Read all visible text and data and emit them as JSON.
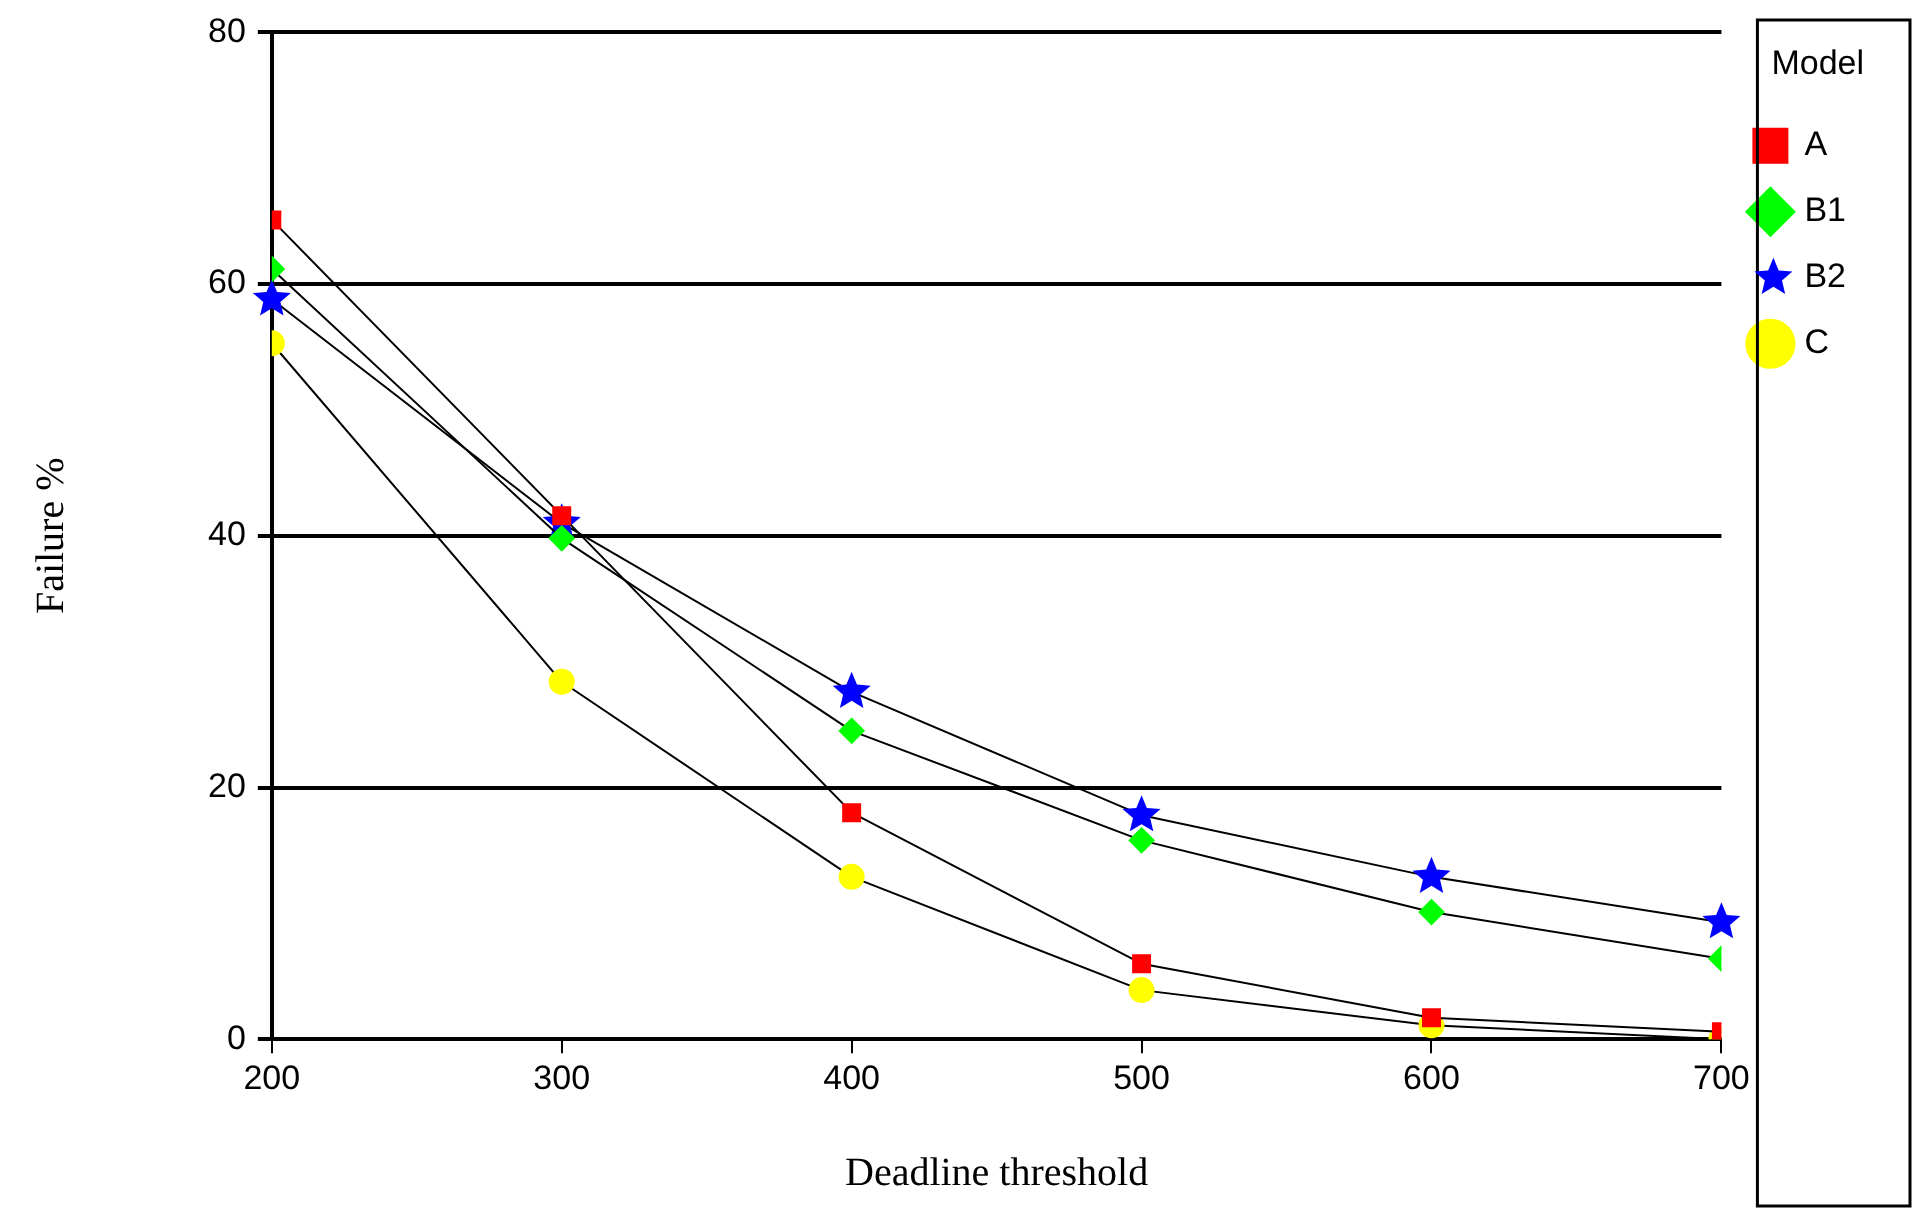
{
  "chart_data": {
    "type": "line",
    "xlabel": "Deadline threshold",
    "ylabel": "Failure %",
    "legend_title": "Model",
    "legend": "top right",
    "grid": "y",
    "x": [
      200,
      300,
      400,
      500,
      600,
      700
    ],
    "xlim": [
      200,
      700
    ],
    "xticks": [
      200,
      300,
      400,
      500,
      600,
      700
    ],
    "ylim": [
      0,
      80
    ],
    "yticks": [
      0,
      20,
      40,
      60,
      80
    ],
    "series": [
      {
        "name": "A",
        "color": "#ff0000",
        "marker": "square",
        "values": [
          65.1,
          41.6,
          18,
          6,
          1.7,
          0.6
        ]
      },
      {
        "name": "B1",
        "color": "#00ff00",
        "marker": "diamond",
        "values": [
          61.2,
          39.8,
          24.5,
          15.8,
          10.1,
          6.4
        ]
      },
      {
        "name": "B2",
        "color": "#0000ff",
        "marker": "star",
        "values": [
          58.8,
          41,
          27.6,
          17.8,
          12.9,
          9.3
        ]
      },
      {
        "name": "C",
        "color": "#ffff00",
        "marker": "circle",
        "values": [
          55.3,
          28.4,
          12.9,
          3.9,
          1.1,
          0
        ]
      }
    ]
  }
}
